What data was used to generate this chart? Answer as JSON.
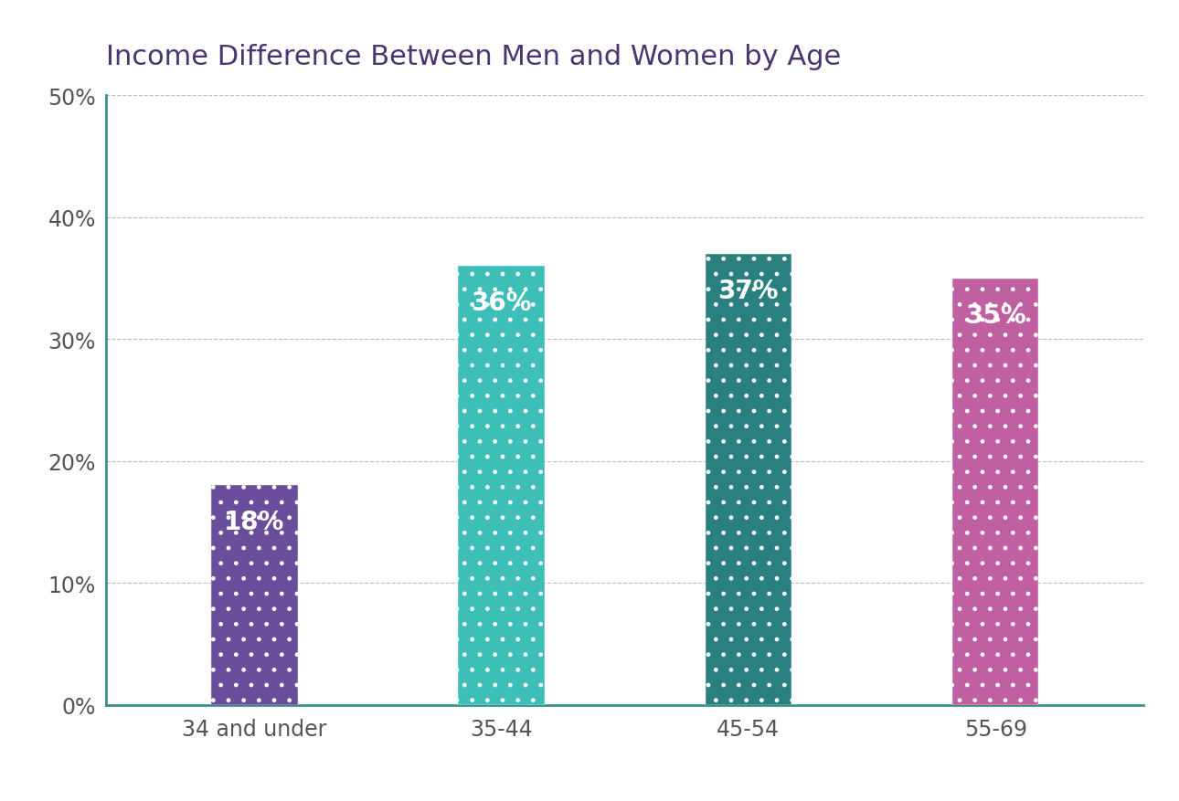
{
  "title": "Income Difference Between Men and Women by Age",
  "categories": [
    "34 and under",
    "35-44",
    "45-54",
    "55-69"
  ],
  "values": [
    18,
    36,
    37,
    35
  ],
  "bar_colors": [
    "#6b4e9b",
    "#3dbfb8",
    "#2a7f7f",
    "#c060a0"
  ],
  "label_color": "#ffffff",
  "title_color": "#4a3570",
  "spine_color": "#3a9090",
  "grid_color": "#aaaaaa",
  "tick_color": "#555555",
  "background_color": "#ffffff",
  "ylim": [
    0,
    50
  ],
  "yticks": [
    0,
    10,
    20,
    30,
    40,
    50
  ],
  "title_fontsize": 22,
  "label_fontsize": 20,
  "tick_fontsize": 17,
  "bar_width": 0.35
}
